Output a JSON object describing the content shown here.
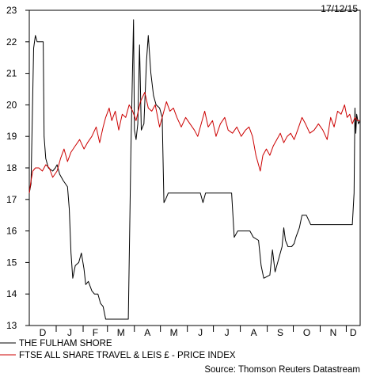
{
  "date_label": "17/12/15",
  "source": "Source: Thomson Reuters Datastream",
  "colors": {
    "series_1": "#000000",
    "series_2": "#cc0000"
  },
  "chart_data": {
    "type": "line",
    "title": "",
    "xlabel": "",
    "ylabel": "",
    "ylim": [
      13,
      23
    ],
    "y_ticks": [
      13,
      14,
      15,
      16,
      17,
      18,
      19,
      20,
      21,
      22,
      23
    ],
    "month_labels": [
      "D",
      "J",
      "F",
      "M",
      "A",
      "M",
      "J",
      "J",
      "A",
      "S",
      "O",
      "N",
      "D"
    ],
    "x_range": [
      "2014-12-01",
      "2015-12-17"
    ],
    "grid": false,
    "legend_position": "bottom-left",
    "series": [
      {
        "name": "THE FULHAM SHORE",
        "color": "#000000",
        "points": [
          [
            "2014-12-01",
            17.2
          ],
          [
            "2014-12-03",
            17.5
          ],
          [
            "2014-12-06",
            21.8
          ],
          [
            "2014-12-08",
            22.2
          ],
          [
            "2014-12-10",
            22.0
          ],
          [
            "2014-12-17",
            22.0
          ],
          [
            "2014-12-18",
            19.0
          ],
          [
            "2014-12-20",
            18.3
          ],
          [
            "2014-12-23",
            18.0
          ],
          [
            "2014-12-28",
            17.9
          ],
          [
            "2014-12-31",
            18.0
          ],
          [
            "2015-01-02",
            18.1
          ],
          [
            "2015-01-05",
            17.8
          ],
          [
            "2015-01-09",
            17.6
          ],
          [
            "2015-01-14",
            17.4
          ],
          [
            "2015-01-16",
            16.7
          ],
          [
            "2015-01-18",
            15.3
          ],
          [
            "2015-01-20",
            14.5
          ],
          [
            "2015-01-23",
            14.9
          ],
          [
            "2015-01-27",
            15.0
          ],
          [
            "2015-01-30",
            15.3
          ],
          [
            "2015-02-02",
            14.8
          ],
          [
            "2015-02-04",
            14.3
          ],
          [
            "2015-02-07",
            14.4
          ],
          [
            "2015-02-11",
            14.1
          ],
          [
            "2015-02-14",
            14.0
          ],
          [
            "2015-02-18",
            14.0
          ],
          [
            "2015-02-21",
            13.7
          ],
          [
            "2015-02-24",
            13.6
          ],
          [
            "2015-02-27",
            13.2
          ],
          [
            "2015-03-25",
            13.2
          ],
          [
            "2015-03-28",
            18.6
          ],
          [
            "2015-03-31",
            22.7
          ],
          [
            "2015-04-01",
            19.2
          ],
          [
            "2015-04-03",
            18.9
          ],
          [
            "2015-04-05",
            19.4
          ],
          [
            "2015-04-07",
            21.9
          ],
          [
            "2015-04-09",
            19.2
          ],
          [
            "2015-04-12",
            19.4
          ],
          [
            "2015-04-15",
            21.4
          ],
          [
            "2015-04-17",
            22.2
          ],
          [
            "2015-04-20",
            21.0
          ],
          [
            "2015-04-23",
            20.3
          ],
          [
            "2015-04-26",
            20.0
          ],
          [
            "2015-04-30",
            19.9
          ],
          [
            "2015-05-03",
            19.6
          ],
          [
            "2015-05-05",
            16.9
          ],
          [
            "2015-05-07",
            17.0
          ],
          [
            "2015-05-10",
            17.2
          ],
          [
            "2015-06-16",
            17.2
          ],
          [
            "2015-06-19",
            16.9
          ],
          [
            "2015-06-22",
            17.2
          ],
          [
            "2015-07-22",
            17.2
          ],
          [
            "2015-07-25",
            15.8
          ],
          [
            "2015-07-29",
            16.0
          ],
          [
            "2015-08-12",
            16.0
          ],
          [
            "2015-08-16",
            15.8
          ],
          [
            "2015-08-22",
            15.7
          ],
          [
            "2015-08-25",
            14.9
          ],
          [
            "2015-08-28",
            14.5
          ],
          [
            "2015-09-04",
            14.6
          ],
          [
            "2015-09-07",
            15.4
          ],
          [
            "2015-09-10",
            14.7
          ],
          [
            "2015-09-14",
            15.1
          ],
          [
            "2015-09-18",
            15.5
          ],
          [
            "2015-09-20",
            16.1
          ],
          [
            "2015-09-22",
            15.7
          ],
          [
            "2015-09-25",
            15.5
          ],
          [
            "2015-09-29",
            15.5
          ],
          [
            "2015-10-02",
            15.6
          ],
          [
            "2015-10-04",
            15.8
          ],
          [
            "2015-10-08",
            16.1
          ],
          [
            "2015-10-11",
            16.5
          ],
          [
            "2015-10-16",
            16.5
          ],
          [
            "2015-10-21",
            16.2
          ],
          [
            "2015-12-08",
            16.2
          ],
          [
            "2015-12-10",
            17.2
          ],
          [
            "2015-12-11",
            19.9
          ],
          [
            "2015-12-12",
            19.1
          ],
          [
            "2015-12-13",
            19.7
          ],
          [
            "2015-12-15",
            19.4
          ],
          [
            "2015-12-17",
            19.5
          ]
        ]
      },
      {
        "name": "FTSE ALL SHARE TRAVEL & LEIS £ - PRICE INDEX",
        "color": "#cc0000",
        "points": [
          [
            "2014-12-01",
            17.2
          ],
          [
            "2014-12-03",
            17.6
          ],
          [
            "2014-12-05",
            17.9
          ],
          [
            "2014-12-08",
            18.0
          ],
          [
            "2014-12-12",
            18.0
          ],
          [
            "2014-12-16",
            17.9
          ],
          [
            "2014-12-20",
            18.1
          ],
          [
            "2014-12-24",
            18.0
          ],
          [
            "2014-12-28",
            17.7
          ],
          [
            "2015-01-02",
            17.9
          ],
          [
            "2015-01-06",
            18.3
          ],
          [
            "2015-01-10",
            18.6
          ],
          [
            "2015-01-14",
            18.2
          ],
          [
            "2015-01-18",
            18.5
          ],
          [
            "2015-01-23",
            18.7
          ],
          [
            "2015-01-28",
            18.9
          ],
          [
            "2015-02-02",
            18.6
          ],
          [
            "2015-02-06",
            18.8
          ],
          [
            "2015-02-11",
            19.0
          ],
          [
            "2015-02-16",
            19.3
          ],
          [
            "2015-02-20",
            18.8
          ],
          [
            "2015-02-24",
            19.3
          ],
          [
            "2015-02-27",
            19.6
          ],
          [
            "2015-03-03",
            19.9
          ],
          [
            "2015-03-06",
            19.5
          ],
          [
            "2015-03-10",
            19.8
          ],
          [
            "2015-03-14",
            19.2
          ],
          [
            "2015-03-18",
            19.7
          ],
          [
            "2015-03-22",
            19.6
          ],
          [
            "2015-03-26",
            20.0
          ],
          [
            "2015-03-30",
            19.8
          ],
          [
            "2015-04-03",
            19.5
          ],
          [
            "2015-04-08",
            20.1
          ],
          [
            "2015-04-13",
            20.4
          ],
          [
            "2015-04-17",
            19.9
          ],
          [
            "2015-04-21",
            19.8
          ],
          [
            "2015-04-25",
            20.0
          ],
          [
            "2015-04-30",
            19.3
          ],
          [
            "2015-05-04",
            19.7
          ],
          [
            "2015-05-08",
            20.1
          ],
          [
            "2015-05-12",
            19.8
          ],
          [
            "2015-05-16",
            19.9
          ],
          [
            "2015-05-20",
            19.6
          ],
          [
            "2015-05-25",
            19.3
          ],
          [
            "2015-05-30",
            19.6
          ],
          [
            "2015-06-04",
            19.4
          ],
          [
            "2015-06-09",
            19.2
          ],
          [
            "2015-06-13",
            19.0
          ],
          [
            "2015-06-17",
            19.4
          ],
          [
            "2015-06-21",
            19.8
          ],
          [
            "2015-06-25",
            19.3
          ],
          [
            "2015-06-30",
            19.5
          ],
          [
            "2015-07-04",
            19.0
          ],
          [
            "2015-07-09",
            19.4
          ],
          [
            "2015-07-14",
            19.6
          ],
          [
            "2015-07-18",
            19.2
          ],
          [
            "2015-07-23",
            19.1
          ],
          [
            "2015-07-28",
            19.3
          ],
          [
            "2015-08-02",
            19.0
          ],
          [
            "2015-08-07",
            19.2
          ],
          [
            "2015-08-11",
            19.3
          ],
          [
            "2015-08-15",
            19.0
          ],
          [
            "2015-08-19",
            18.4
          ],
          [
            "2015-08-22",
            18.1
          ],
          [
            "2015-08-24",
            17.9
          ],
          [
            "2015-08-27",
            18.4
          ],
          [
            "2015-08-31",
            18.6
          ],
          [
            "2015-09-04",
            18.4
          ],
          [
            "2015-09-08",
            18.7
          ],
          [
            "2015-09-12",
            18.9
          ],
          [
            "2015-09-16",
            19.1
          ],
          [
            "2015-09-20",
            18.8
          ],
          [
            "2015-09-24",
            19.0
          ],
          [
            "2015-09-28",
            19.1
          ],
          [
            "2015-10-02",
            18.9
          ],
          [
            "2015-10-06",
            19.2
          ],
          [
            "2015-10-11",
            19.6
          ],
          [
            "2015-10-15",
            19.4
          ],
          [
            "2015-10-20",
            19.1
          ],
          [
            "2015-10-25",
            19.2
          ],
          [
            "2015-10-30",
            19.4
          ],
          [
            "2015-11-04",
            19.2
          ],
          [
            "2015-11-09",
            18.9
          ],
          [
            "2015-11-13",
            19.6
          ],
          [
            "2015-11-17",
            19.3
          ],
          [
            "2015-11-21",
            19.8
          ],
          [
            "2015-11-25",
            19.7
          ],
          [
            "2015-11-29",
            20.0
          ],
          [
            "2015-12-02",
            19.6
          ],
          [
            "2015-12-05",
            19.7
          ],
          [
            "2015-12-08",
            19.4
          ],
          [
            "2015-12-11",
            19.6
          ],
          [
            "2015-12-14",
            19.5
          ],
          [
            "2015-12-17",
            19.5
          ]
        ]
      }
    ]
  }
}
